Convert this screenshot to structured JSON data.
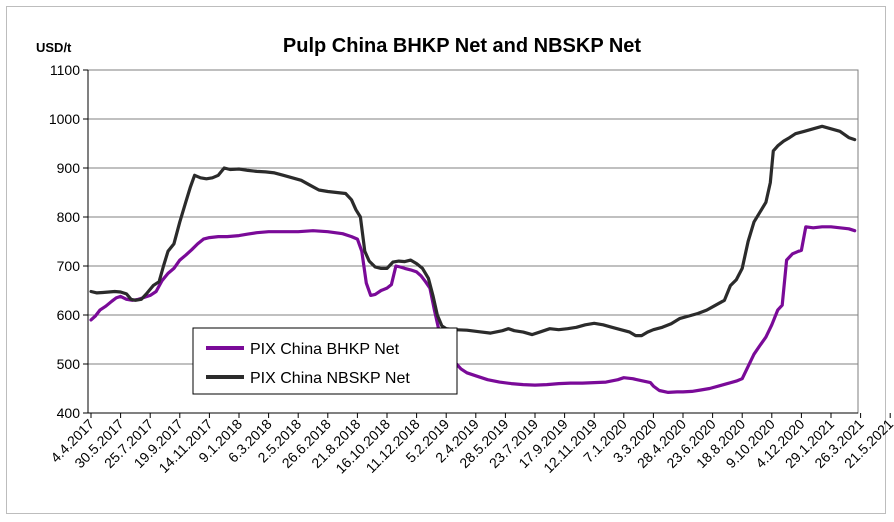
{
  "chart_data": {
    "type": "line",
    "title": "Pulp China BHKP Net and NBSKP Net",
    "ylabel": "USD/t",
    "ylim": [
      400,
      1100
    ],
    "yticks": [
      400,
      500,
      600,
      700,
      800,
      900,
      1000,
      1100
    ],
    "grid": true,
    "legend_position": "lower-left",
    "x_tick_labels": [
      "4.4.2017",
      "30.5.2017",
      "25.7.2017",
      "19.9.2017",
      "14.11.2017",
      "9.1.2018",
      "6.3.2018",
      "2.5.2018",
      "26.6.2018",
      "21.8.2018",
      "16.10.2018",
      "11.12.2018",
      "5.2.2019",
      "2.4.2019",
      "28.5.2019",
      "23.7.2019",
      "17.9.2019",
      "12.11.2019",
      "7.1.2020",
      "3.3.2020",
      "28.4.2020",
      "23.6.2020",
      "18.8.2020",
      "9.10.2020",
      "4.12.2020",
      "29.1.2021",
      "26.3.2021",
      "21.5.2021"
    ],
    "series": [
      {
        "name": "PIX China BHKP Net",
        "color": "#7a0a98",
        "points": [
          [
            0,
            590
          ],
          [
            0.15,
            598
          ],
          [
            0.3,
            610
          ],
          [
            0.5,
            618
          ],
          [
            0.7,
            628
          ],
          [
            0.85,
            635
          ],
          [
            1,
            638
          ],
          [
            1.2,
            632
          ],
          [
            1.4,
            630
          ],
          [
            1.6,
            632
          ],
          [
            1.8,
            636
          ],
          [
            2,
            640
          ],
          [
            2.2,
            648
          ],
          [
            2.4,
            670
          ],
          [
            2.6,
            685
          ],
          [
            2.8,
            695
          ],
          [
            3,
            712
          ],
          [
            3.2,
            722
          ],
          [
            3.4,
            733
          ],
          [
            3.6,
            745
          ],
          [
            3.8,
            755
          ],
          [
            4,
            758
          ],
          [
            4.3,
            760
          ],
          [
            4.6,
            760
          ],
          [
            5,
            762
          ],
          [
            5.3,
            765
          ],
          [
            5.6,
            768
          ],
          [
            6,
            770
          ],
          [
            6.5,
            770
          ],
          [
            7,
            770
          ],
          [
            7.5,
            772
          ],
          [
            8,
            770
          ],
          [
            8.5,
            766
          ],
          [
            8.8,
            760
          ],
          [
            9,
            755
          ],
          [
            9.15,
            730
          ],
          [
            9.3,
            665
          ],
          [
            9.45,
            640
          ],
          [
            9.6,
            642
          ],
          [
            9.8,
            650
          ],
          [
            10,
            655
          ],
          [
            10.15,
            662
          ],
          [
            10.3,
            700
          ],
          [
            10.45,
            698
          ],
          [
            10.6,
            695
          ],
          [
            10.8,
            692
          ],
          [
            11,
            688
          ],
          [
            11.15,
            680
          ],
          [
            11.3,
            668
          ],
          [
            11.45,
            655
          ],
          [
            11.6,
            610
          ],
          [
            11.75,
            570
          ],
          [
            11.9,
            540
          ],
          [
            12.1,
            520
          ],
          [
            12.3,
            503
          ],
          [
            12.5,
            490
          ],
          [
            12.7,
            482
          ],
          [
            13,
            476
          ],
          [
            13.4,
            468
          ],
          [
            13.8,
            463
          ],
          [
            14.2,
            460
          ],
          [
            14.6,
            458
          ],
          [
            15,
            457
          ],
          [
            15.4,
            458
          ],
          [
            15.8,
            460
          ],
          [
            16.2,
            461
          ],
          [
            16.6,
            461
          ],
          [
            17,
            462
          ],
          [
            17.4,
            463
          ],
          [
            17.8,
            468
          ],
          [
            18,
            472
          ],
          [
            18.3,
            470
          ],
          [
            18.6,
            466
          ],
          [
            18.9,
            462
          ],
          [
            19,
            455
          ],
          [
            19.2,
            446
          ],
          [
            19.5,
            442
          ],
          [
            19.8,
            443
          ],
          [
            20,
            443
          ],
          [
            20.3,
            444
          ],
          [
            20.6,
            447
          ],
          [
            20.9,
            450
          ],
          [
            21.2,
            455
          ],
          [
            21.5,
            460
          ],
          [
            21.8,
            465
          ],
          [
            22,
            470
          ],
          [
            22.2,
            495
          ],
          [
            22.4,
            520
          ],
          [
            22.6,
            538
          ],
          [
            22.8,
            555
          ],
          [
            23,
            580
          ],
          [
            23.2,
            610
          ],
          [
            23.35,
            620
          ],
          [
            23.5,
            712
          ],
          [
            23.7,
            725
          ],
          [
            23.9,
            730
          ],
          [
            24,
            732
          ],
          [
            24.15,
            780
          ],
          [
            24.4,
            778
          ],
          [
            24.7,
            780
          ],
          [
            25,
            780
          ],
          [
            25.3,
            778
          ],
          [
            25.6,
            776
          ],
          [
            25.8,
            772
          ]
        ]
      },
      {
        "name": "PIX China NBSKP Net",
        "color": "#2b2b2b",
        "points": [
          [
            0,
            648
          ],
          [
            0.2,
            645
          ],
          [
            0.4,
            646
          ],
          [
            0.6,
            647
          ],
          [
            0.8,
            648
          ],
          [
            1,
            647
          ],
          [
            1.2,
            643
          ],
          [
            1.35,
            632
          ],
          [
            1.5,
            630
          ],
          [
            1.7,
            632
          ],
          [
            1.9,
            645
          ],
          [
            2.1,
            660
          ],
          [
            2.3,
            668
          ],
          [
            2.45,
            700
          ],
          [
            2.6,
            730
          ],
          [
            2.8,
            745
          ],
          [
            3,
            790
          ],
          [
            3.2,
            830
          ],
          [
            3.35,
            860
          ],
          [
            3.5,
            885
          ],
          [
            3.7,
            880
          ],
          [
            3.9,
            878
          ],
          [
            4.1,
            880
          ],
          [
            4.3,
            885
          ],
          [
            4.5,
            900
          ],
          [
            4.7,
            897
          ],
          [
            5,
            898
          ],
          [
            5.3,
            895
          ],
          [
            5.6,
            893
          ],
          [
            5.9,
            892
          ],
          [
            6.2,
            890
          ],
          [
            6.5,
            885
          ],
          [
            6.8,
            880
          ],
          [
            7.1,
            875
          ],
          [
            7.4,
            865
          ],
          [
            7.7,
            855
          ],
          [
            8,
            852
          ],
          [
            8.3,
            850
          ],
          [
            8.6,
            848
          ],
          [
            8.8,
            835
          ],
          [
            8.95,
            815
          ],
          [
            9.1,
            800
          ],
          [
            9.25,
            730
          ],
          [
            9.4,
            710
          ],
          [
            9.6,
            698
          ],
          [
            9.8,
            695
          ],
          [
            10,
            695
          ],
          [
            10.2,
            708
          ],
          [
            10.4,
            710
          ],
          [
            10.6,
            709
          ],
          [
            10.8,
            712
          ],
          [
            11,
            705
          ],
          [
            11.2,
            695
          ],
          [
            11.4,
            675
          ],
          [
            11.55,
            640
          ],
          [
            11.7,
            600
          ],
          [
            11.85,
            578
          ],
          [
            12,
            572
          ],
          [
            12.3,
            570
          ],
          [
            12.7,
            569
          ],
          [
            13.1,
            566
          ],
          [
            13.5,
            563
          ],
          [
            13.9,
            568
          ],
          [
            14.1,
            572
          ],
          [
            14.3,
            568
          ],
          [
            14.6,
            565
          ],
          [
            14.9,
            560
          ],
          [
            15.2,
            566
          ],
          [
            15.5,
            572
          ],
          [
            15.8,
            570
          ],
          [
            16.1,
            572
          ],
          [
            16.4,
            575
          ],
          [
            16.7,
            580
          ],
          [
            17,
            583
          ],
          [
            17.3,
            580
          ],
          [
            17.6,
            575
          ],
          [
            17.9,
            570
          ],
          [
            18.2,
            565
          ],
          [
            18.4,
            558
          ],
          [
            18.6,
            558
          ],
          [
            18.8,
            565
          ],
          [
            19,
            570
          ],
          [
            19.3,
            575
          ],
          [
            19.6,
            582
          ],
          [
            19.9,
            593
          ],
          [
            20.2,
            598
          ],
          [
            20.5,
            603
          ],
          [
            20.8,
            610
          ],
          [
            21.1,
            620
          ],
          [
            21.4,
            630
          ],
          [
            21.6,
            660
          ],
          [
            21.8,
            672
          ],
          [
            22,
            695
          ],
          [
            22.2,
            750
          ],
          [
            22.4,
            790
          ],
          [
            22.6,
            810
          ],
          [
            22.8,
            830
          ],
          [
            22.95,
            870
          ],
          [
            23.05,
            935
          ],
          [
            23.2,
            945
          ],
          [
            23.4,
            955
          ],
          [
            23.6,
            962
          ],
          [
            23.8,
            970
          ],
          [
            24.1,
            975
          ],
          [
            24.4,
            980
          ],
          [
            24.7,
            985
          ],
          [
            25,
            980
          ],
          [
            25.3,
            975
          ],
          [
            25.6,
            962
          ],
          [
            25.8,
            958
          ]
        ]
      }
    ]
  }
}
